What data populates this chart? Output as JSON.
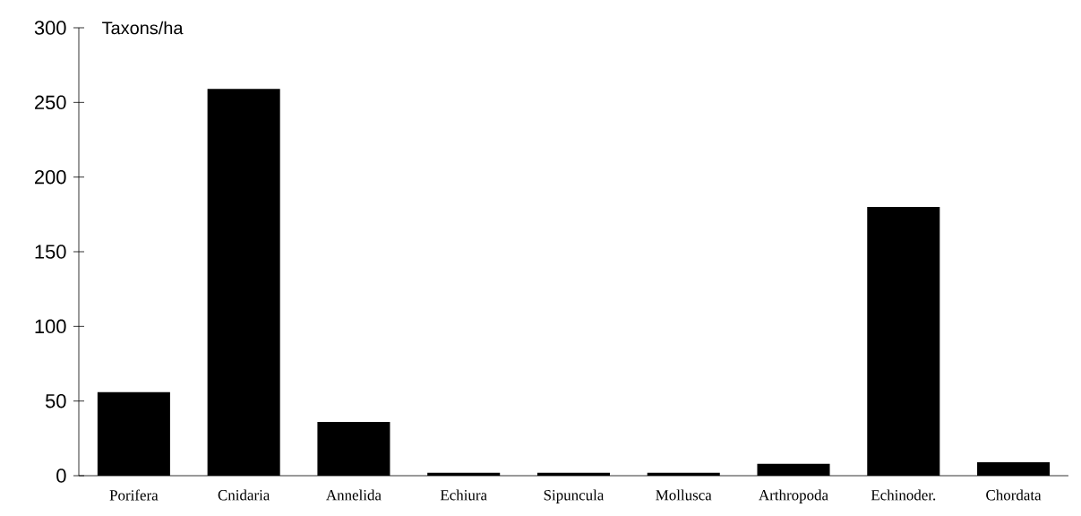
{
  "chart_data": {
    "type": "bar",
    "ylabel": "Taxons/ha",
    "categories": [
      "Porifera",
      "Cnidaria",
      "Annelida",
      "Echiura",
      "Sipuncula",
      "Mollusca",
      "Arthropoda",
      "Echinoder.",
      "Chordata"
    ],
    "values": [
      56,
      259,
      36,
      2,
      2,
      2,
      8,
      180,
      9
    ],
    "color": "#000000",
    "ylim": [
      0,
      300
    ],
    "yticks": [
      0,
      50,
      100,
      150,
      200,
      250,
      300
    ],
    "grid": false
  }
}
